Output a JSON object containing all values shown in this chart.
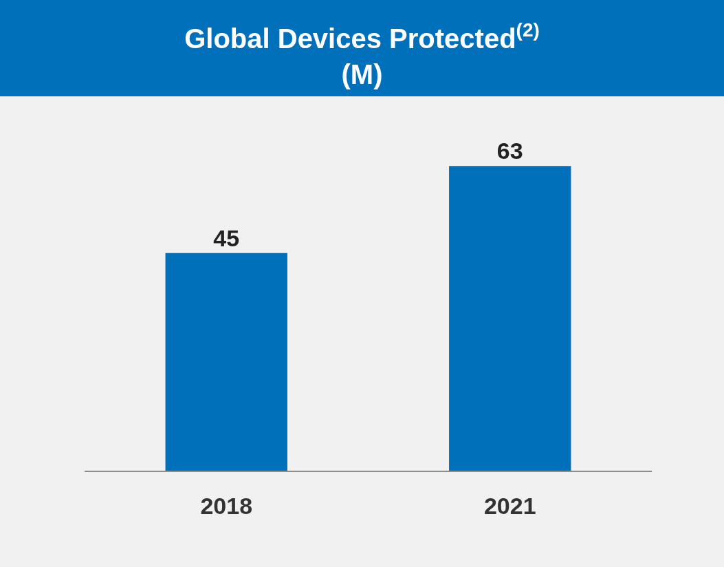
{
  "chart_data": {
    "type": "bar",
    "title": "Global Devices Protected$^{(2)}$",
    "subtitle": "(M)",
    "categories": [
      "2018",
      "2021"
    ],
    "values": [
      45,
      63
    ],
    "color": "#0070ba",
    "data_labels": true,
    "tick_labels": "x",
    "grid": false,
    "legend": false
  }
}
